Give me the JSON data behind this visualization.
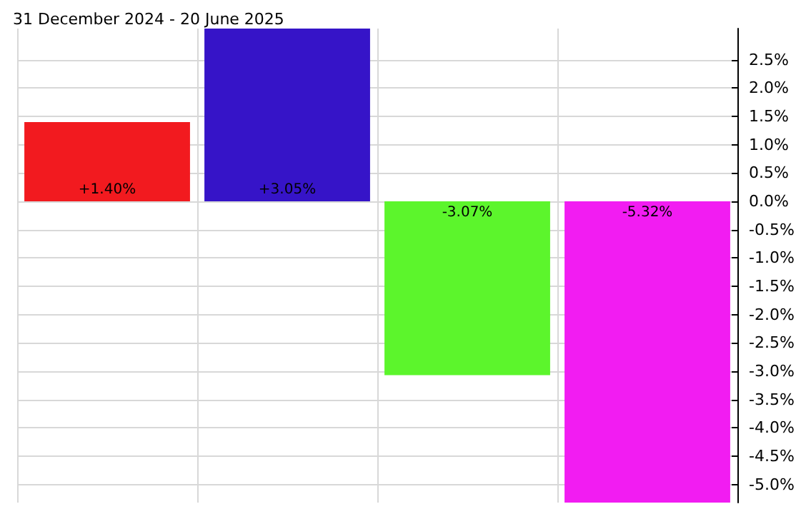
{
  "chart_data": {
    "type": "bar",
    "title": "31 December 2024 - 20 June 2025",
    "categories": [
      null,
      null,
      null,
      null
    ],
    "values": [
      1.4,
      3.05,
      -3.07,
      -5.32
    ],
    "colors": [
      "#f21a1f",
      "#3614c8",
      "#5cf52c",
      "#f21cf2"
    ],
    "value_labels": [
      "+1.40%",
      "+3.05%",
      "-3.07%",
      "-5.32%"
    ],
    "ylim": [
      -5.32,
      3.05
    ],
    "yticks": [
      {
        "value": 2.5,
        "label": "2.5%"
      },
      {
        "value": 2.0,
        "label": "2.0%"
      },
      {
        "value": 1.5,
        "label": "1.5%"
      },
      {
        "value": 1.0,
        "label": "1.0%"
      },
      {
        "value": 0.5,
        "label": "0.5%"
      },
      {
        "value": 0,
        "label": "0.0%"
      },
      {
        "value": -0.5,
        "label": "-0.5%"
      },
      {
        "value": -1.0,
        "label": "-1.0%"
      },
      {
        "value": -1.5,
        "label": "-1.5%"
      },
      {
        "value": -2.0,
        "label": "-2.0%"
      },
      {
        "value": -2.5,
        "label": "-2.5%"
      },
      {
        "value": -3.0,
        "label": "-3.0%"
      },
      {
        "value": -3.5,
        "label": "-3.5%"
      },
      {
        "value": -4.0,
        "label": "-4.0%"
      },
      {
        "value": -4.5,
        "label": "-4.5%"
      },
      {
        "value": -5.0,
        "label": "-5.0%"
      }
    ],
    "grid": true
  }
}
